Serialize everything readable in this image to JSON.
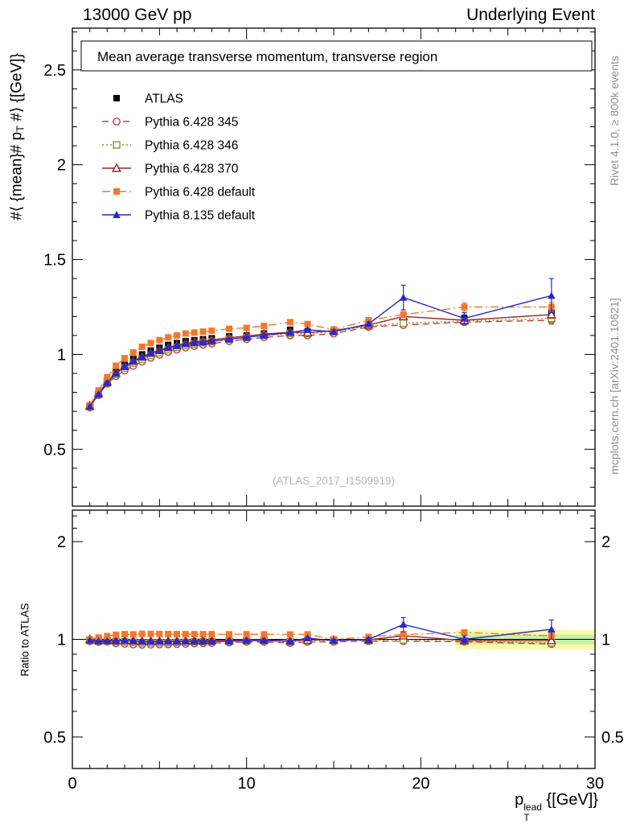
{
  "page": {
    "header_left": "13000 GeV pp",
    "header_right": "Underlying Event",
    "watermark": "(ATLAS_2017_I1509919)",
    "side_text_top": "Rivet 4.1.0, ≥ 800k events",
    "side_text_bottom": "mcplots.cern.ch [arXiv:2401.10621]",
    "ratio_ylabel": "Ratio to ATLAS",
    "main_ylabel": {
      "pre": "#⟨ {mean}# p",
      "sub": "T",
      "post": " #⟩ {[GeV]}"
    },
    "xlabel": {
      "base": "p",
      "sup": "lead",
      "sub": "T",
      "post": " {[GeV]}"
    }
  },
  "chart_data": {
    "type": "line",
    "title": "Mean average transverse momentum, transverse region",
    "x": [
      1,
      1.5,
      2,
      2.5,
      3,
      3.5,
      4,
      4.5,
      5,
      5.5,
      6,
      6.5,
      7,
      7.5,
      8,
      9,
      10,
      11,
      12.5,
      13.5,
      15,
      17,
      19,
      22.5,
      27.5
    ],
    "series": [
      {
        "name": "ATLAS",
        "color": "#000000",
        "marker": "square-filled",
        "line": "none",
        "values": [
          0.73,
          0.8,
          0.86,
          0.91,
          0.945,
          0.975,
          1.0,
          1.02,
          1.035,
          1.05,
          1.06,
          1.07,
          1.075,
          1.08,
          1.085,
          1.095,
          1.1,
          1.11,
          1.13,
          1.12,
          1.13,
          1.16,
          1.17,
          1.19,
          1.22
        ],
        "yerr": [
          0.012,
          0.01,
          0.008,
          0.008,
          0.008,
          0.008,
          0.008,
          0.008,
          0.008,
          0.008,
          0.008,
          0.008,
          0.008,
          0.008,
          0.008,
          0.008,
          0.008,
          0.01,
          0.012,
          0.012,
          0.012,
          0.015,
          0.018,
          0.018,
          0.022
        ]
      },
      {
        "name": "Pythia 6.428 345",
        "color": "#bf4040",
        "marker": "circle-open",
        "line": "dashed",
        "values": [
          0.72,
          0.785,
          0.845,
          0.885,
          0.915,
          0.94,
          0.962,
          0.982,
          0.998,
          1.013,
          1.025,
          1.036,
          1.044,
          1.051,
          1.057,
          1.07,
          1.08,
          1.09,
          1.1,
          1.1,
          1.11,
          1.145,
          1.155,
          1.17,
          1.18
        ],
        "yerr": [
          0.005,
          0.004,
          0.004,
          0.004,
          0.004,
          0.004,
          0.004,
          0.004,
          0.004,
          0.004,
          0.004,
          0.004,
          0.004,
          0.004,
          0.004,
          0.004,
          0.005,
          0.005,
          0.006,
          0.006,
          0.007,
          0.009,
          0.012,
          0.015,
          0.02
        ]
      },
      {
        "name": "Pythia 6.428 346",
        "color": "#8f8f2e",
        "marker": "square-open",
        "line": "dotted",
        "values": [
          0.725,
          0.79,
          0.85,
          0.895,
          0.928,
          0.955,
          0.975,
          0.995,
          1.01,
          1.025,
          1.037,
          1.047,
          1.055,
          1.062,
          1.067,
          1.08,
          1.09,
          1.1,
          1.11,
          1.11,
          1.12,
          1.15,
          1.165,
          1.175,
          1.19
        ],
        "yerr": [
          0.005,
          0.004,
          0.004,
          0.004,
          0.004,
          0.004,
          0.004,
          0.004,
          0.004,
          0.004,
          0.004,
          0.004,
          0.004,
          0.004,
          0.004,
          0.004,
          0.005,
          0.005,
          0.006,
          0.006,
          0.007,
          0.009,
          0.012,
          0.015,
          0.02
        ]
      },
      {
        "name": "Pythia 6.428 370",
        "color": "#992626",
        "marker": "triangle-open",
        "line": "solid",
        "values": [
          0.73,
          0.795,
          0.855,
          0.902,
          0.938,
          0.965,
          0.987,
          1.007,
          1.022,
          1.037,
          1.048,
          1.058,
          1.065,
          1.072,
          1.077,
          1.088,
          1.097,
          1.107,
          1.117,
          1.115,
          1.125,
          1.155,
          1.2,
          1.18,
          1.21
        ],
        "yerr": [
          0.005,
          0.004,
          0.004,
          0.004,
          0.004,
          0.004,
          0.004,
          0.004,
          0.004,
          0.004,
          0.004,
          0.004,
          0.004,
          0.004,
          0.004,
          0.004,
          0.005,
          0.005,
          0.006,
          0.006,
          0.007,
          0.009,
          0.014,
          0.015,
          0.02
        ]
      },
      {
        "name": "Pythia 6.428 default",
        "color": "#f5772b",
        "marker": "square-filled",
        "line": "dashdot",
        "values": [
          0.73,
          0.81,
          0.88,
          0.94,
          0.98,
          1.01,
          1.04,
          1.06,
          1.075,
          1.09,
          1.1,
          1.11,
          1.115,
          1.12,
          1.125,
          1.135,
          1.14,
          1.15,
          1.17,
          1.16,
          1.13,
          1.18,
          1.21,
          1.25,
          1.25
        ],
        "yerr": [
          0.005,
          0.004,
          0.004,
          0.004,
          0.004,
          0.004,
          0.004,
          0.004,
          0.004,
          0.004,
          0.004,
          0.004,
          0.004,
          0.004,
          0.004,
          0.005,
          0.005,
          0.006,
          0.008,
          0.008,
          0.009,
          0.012,
          0.016,
          0.022,
          0.024
        ]
      },
      {
        "name": "Pythia 8.135 default",
        "color": "#2929cc",
        "marker": "triangle-filled",
        "line": "solid",
        "values": [
          0.725,
          0.79,
          0.85,
          0.9,
          0.935,
          0.965,
          0.985,
          1.005,
          1.02,
          1.035,
          1.045,
          1.055,
          1.06,
          1.065,
          1.07,
          1.08,
          1.09,
          1.1,
          1.115,
          1.13,
          1.12,
          1.16,
          1.3,
          1.19,
          1.31
        ],
        "yerr": [
          0.005,
          0.004,
          0.004,
          0.004,
          0.004,
          0.004,
          0.004,
          0.004,
          0.004,
          0.004,
          0.004,
          0.004,
          0.004,
          0.004,
          0.004,
          0.005,
          0.005,
          0.006,
          0.007,
          0.008,
          0.01,
          0.012,
          0.065,
          0.03,
          0.09
        ]
      }
    ],
    "axes": {
      "x": {
        "min": 0,
        "max": 30,
        "ticks": [
          0,
          10,
          20,
          30
        ],
        "scale": "linear"
      },
      "main_y": {
        "min": 0.2,
        "max": 2.72,
        "ticks": [
          0.5,
          1,
          1.5,
          2,
          2.5
        ],
        "scale": "linear"
      },
      "ratio_y": {
        "min": 0.4,
        "max": 2.5,
        "ticks": [
          0.5,
          1,
          2
        ],
        "scale": "log"
      }
    },
    "legend_position": "top-left",
    "grid": false,
    "ratio_reference": 1,
    "uncertainty_band": {
      "x_start": 22,
      "x_end": 30,
      "rel_outer": 0.07,
      "rel_inner": 0.035,
      "outer_color": "#fbfbae",
      "inner_color": "#c4f2a9"
    }
  }
}
